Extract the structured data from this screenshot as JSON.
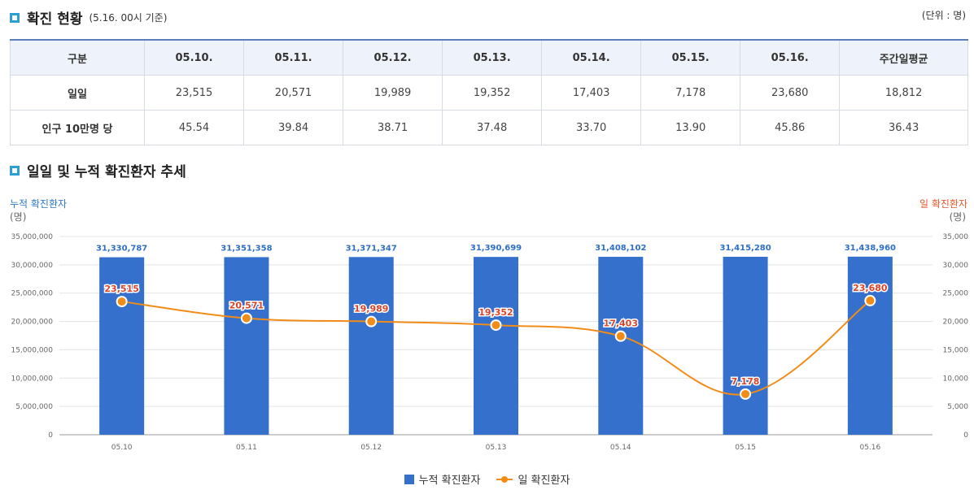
{
  "status_section": {
    "title": "확진 현황",
    "subtitle": "(5.16. 00시 기준)",
    "unit": "(단위 : 명)"
  },
  "table": {
    "headers": [
      "구분",
      "05.10.",
      "05.11.",
      "05.12.",
      "05.13.",
      "05.14.",
      "05.15.",
      "05.16.",
      "주간일평균"
    ],
    "rows": [
      {
        "label": "일일",
        "values": [
          "23,515",
          "20,571",
          "19,989",
          "19,352",
          "17,403",
          "7,178",
          "23,680",
          "18,812"
        ]
      },
      {
        "label": "인구 10만명 당",
        "values": [
          "45.54",
          "39.84",
          "38.71",
          "37.48",
          "33.70",
          "13.90",
          "45.86",
          "36.43"
        ]
      }
    ]
  },
  "trend_section": {
    "title": "일일 및 누적 확진환자 추세"
  },
  "axis_labels": {
    "left_title": "누적 확진환자",
    "left_unit": "(명)",
    "right_title": "일 확진환자",
    "right_unit": "(명)"
  },
  "chart_data": {
    "type": "bar",
    "categories": [
      "05.10",
      "05.11",
      "05.12",
      "05.13",
      "05.14",
      "05.15",
      "05.16"
    ],
    "series": [
      {
        "name": "누적 확진환자",
        "type": "bar",
        "axis": "left",
        "color": "#3570cc",
        "values": [
          31330787,
          31351358,
          31371347,
          31390699,
          31408102,
          31415280,
          31438960
        ],
        "labels": [
          "31,330,787",
          "31,351,358",
          "31,371,347",
          "31,390,699",
          "31,408,102",
          "31,415,280",
          "31,438,960"
        ]
      },
      {
        "name": "일 확진환자",
        "type": "line",
        "axis": "right",
        "color": "#f28c18",
        "values": [
          23515,
          20571,
          19989,
          19352,
          17403,
          7178,
          23680
        ],
        "labels": [
          "23,515",
          "20,571",
          "19,989",
          "19,352",
          "17,403",
          "7,178",
          "23,680"
        ]
      }
    ],
    "y_left": {
      "min": 0,
      "max": 35000000,
      "ticks": [
        "0",
        "5,000,000",
        "10,000,000",
        "15,000,000",
        "20,000,000",
        "25,000,000",
        "30,000,000",
        "35,000,000"
      ]
    },
    "y_right": {
      "min": 0,
      "max": 35000,
      "ticks": [
        "0",
        "5,000",
        "10,000",
        "15,000",
        "20,000",
        "25,000",
        "30,000",
        "35,000"
      ]
    },
    "legend": [
      "누적 확진환자",
      "일 확진환자"
    ],
    "legend_position": "bottom",
    "grid": true
  }
}
